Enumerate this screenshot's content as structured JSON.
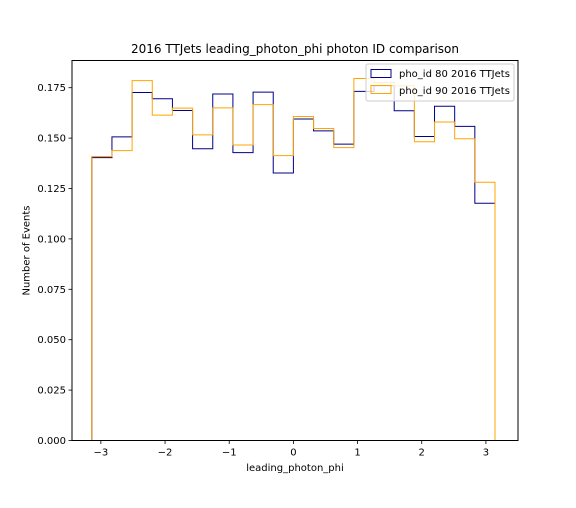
{
  "chart_data": {
    "type": "histogram-step",
    "title": "2016 TTJets leading_photon_phi photon ID comparison",
    "xlabel": "leading_photon_phi",
    "ylabel": "Number of Events",
    "xlim": [
      -3.45,
      3.5
    ],
    "ylim": [
      0.0,
      0.1885
    ],
    "xticks": [
      -3,
      -2,
      -1,
      0,
      1,
      2,
      3
    ],
    "xtick_labels": [
      "−3",
      "−2",
      "−1",
      "0",
      "1",
      "2",
      "3"
    ],
    "yticks": [
      0.0,
      0.025,
      0.05,
      0.075,
      0.1,
      0.125,
      0.15,
      0.175
    ],
    "ytick_labels": [
      "0.000",
      "0.025",
      "0.050",
      "0.075",
      "0.100",
      "0.125",
      "0.150",
      "0.175"
    ],
    "bin_edges": [
      -3.1416,
      -2.8274,
      -2.5133,
      -2.1991,
      -1.885,
      -1.5708,
      -1.2566,
      -0.9425,
      -0.6283,
      -0.3142,
      0.0,
      0.3142,
      0.6283,
      0.9425,
      1.2566,
      1.5708,
      1.885,
      2.1991,
      2.5133,
      2.8274,
      3.1416
    ],
    "legend_position": "top-right",
    "series": [
      {
        "name": "pho_id 80 2016 TTJets",
        "color": "#00008b",
        "values": [
          0.1403,
          0.1506,
          0.1726,
          0.1695,
          0.1637,
          0.1447,
          0.1719,
          0.1428,
          0.1728,
          0.1327,
          0.1595,
          0.1536,
          0.147,
          0.1732,
          0.176,
          0.1636,
          0.1508,
          0.1658,
          0.1558,
          0.1177
        ]
      },
      {
        "name": "pho_id 90 2016 TTJets",
        "color": "#ffa500",
        "values": [
          0.1409,
          0.1438,
          0.1785,
          0.1614,
          0.1649,
          0.1516,
          0.165,
          0.1466,
          0.1666,
          0.1413,
          0.1607,
          0.1548,
          0.1453,
          0.1796,
          0.1776,
          0.176,
          0.1482,
          0.158,
          0.1497,
          0.1281
        ]
      }
    ]
  }
}
